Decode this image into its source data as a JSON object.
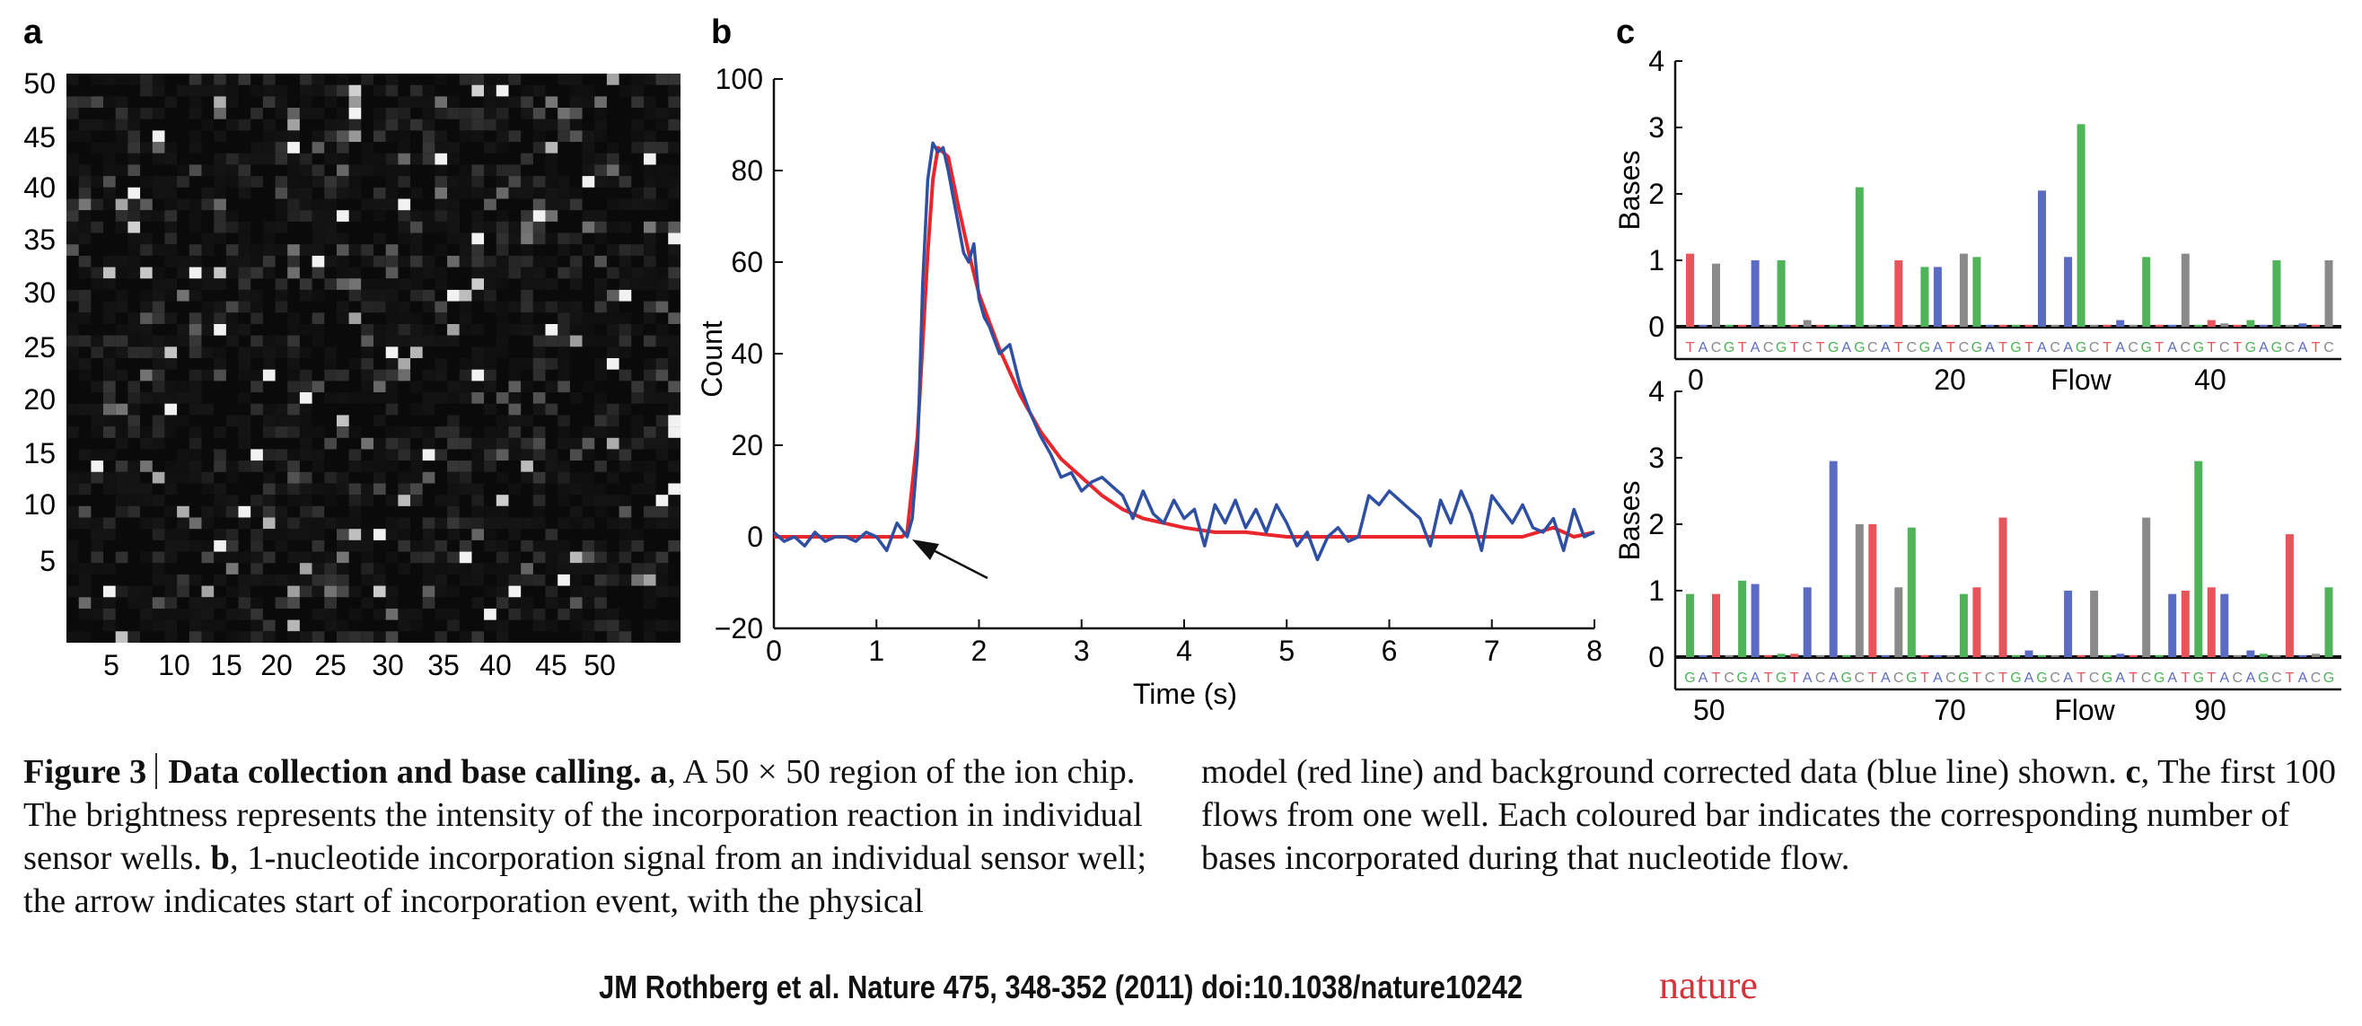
{
  "panels": {
    "a": {
      "label": "a",
      "y_ticks": [
        "50",
        "45",
        "40",
        "35",
        "30",
        "25",
        "20",
        "15",
        "10",
        "5"
      ],
      "x_ticks": [
        "5",
        "10",
        "15",
        "20",
        "25",
        "30",
        "35",
        "40",
        "45",
        "50"
      ]
    },
    "b": {
      "label": "b"
    },
    "c": {
      "label": "c"
    }
  },
  "chart_data": [
    {
      "panel": "a",
      "type": "heatmap",
      "description_grid": "50x50 sensor-well intensities",
      "grid_size": [
        50,
        50
      ],
      "background": "#0a0a0a",
      "bright_wells": [
        [
          34,
          47
        ],
        [
          36,
          45
        ],
        [
          32,
          42
        ],
        [
          12,
          41
        ],
        [
          48,
          37
        ],
        [
          55,
          36
        ],
        [
          15,
          33
        ],
        [
          50,
          31
        ],
        [
          19,
          28
        ],
        [
          33,
          26
        ],
        [
          26,
          24
        ],
        [
          12,
          22
        ],
        [
          39,
          22
        ],
        [
          45,
          19
        ],
        [
          10,
          17
        ],
        [
          20,
          16
        ],
        [
          33,
          14
        ],
        [
          38,
          12
        ],
        [
          22,
          12
        ],
        [
          27,
          11
        ],
        [
          5,
          10
        ],
        [
          42,
          9
        ],
        [
          47,
          7
        ],
        [
          30,
          7
        ],
        [
          18,
          6
        ],
        [
          23,
          3
        ],
        [
          35,
          1
        ],
        [
          8,
          29
        ],
        [
          29,
          33
        ],
        [
          44,
          25
        ],
        [
          14,
          38
        ],
        [
          25,
          40
        ],
        [
          40,
          44
        ],
        [
          3,
          45
        ],
        [
          52,
          30
        ],
        [
          7,
          5
        ],
        [
          16,
          26
        ],
        [
          31,
          19
        ],
        [
          49,
          14
        ],
        [
          2,
          34
        ]
      ]
    },
    {
      "panel": "b",
      "type": "line",
      "xlabel": "Time (s)",
      "ylabel": "Count",
      "xlim": [
        0,
        8
      ],
      "ylim": [
        -20,
        100
      ],
      "x_ticks": [
        "0",
        "1",
        "2",
        "3",
        "4",
        "5",
        "6",
        "7",
        "8"
      ],
      "y_ticks": [
        "100",
        "80",
        "60",
        "40",
        "20",
        "0",
        "−20"
      ],
      "colors": {
        "model": "#e8262b",
        "data": "#2f4fa3",
        "arrow": "#111111"
      },
      "series": [
        {
          "key": "model",
          "x": [
            0,
            0.25,
            0.5,
            0.75,
            1.0,
            1.25,
            1.3,
            1.4,
            1.5,
            1.55,
            1.6,
            1.7,
            1.8,
            1.9,
            2.0,
            2.2,
            2.4,
            2.6,
            2.8,
            3.0,
            3.2,
            3.4,
            3.6,
            3.8,
            4.0,
            4.3,
            4.6,
            5.0,
            5.5,
            6.0,
            6.5,
            7.0,
            7.3,
            7.6,
            7.8,
            8.0
          ],
          "y": [
            0,
            0,
            0,
            0,
            0,
            0,
            1,
            22,
            62,
            78,
            85,
            83,
            72,
            62,
            53,
            41,
            31,
            23,
            17,
            13,
            9,
            6,
            4,
            3,
            2,
            1,
            1,
            0,
            0,
            0,
            0,
            0,
            0,
            2,
            0,
            1
          ]
        },
        {
          "key": "data",
          "x": [
            0,
            0.1,
            0.2,
            0.3,
            0.4,
            0.5,
            0.6,
            0.7,
            0.8,
            0.9,
            1.0,
            1.1,
            1.2,
            1.3,
            1.35,
            1.4,
            1.45,
            1.5,
            1.55,
            1.6,
            1.65,
            1.7,
            1.75,
            1.8,
            1.85,
            1.9,
            1.95,
            2.0,
            2.05,
            2.1,
            2.2,
            2.3,
            2.4,
            2.5,
            2.6,
            2.7,
            2.8,
            2.9,
            3.0,
            3.1,
            3.2,
            3.3,
            3.4,
            3.5,
            3.6,
            3.7,
            3.8,
            3.9,
            4.0,
            4.1,
            4.2,
            4.3,
            4.4,
            4.5,
            4.6,
            4.7,
            4.8,
            4.9,
            5.0,
            5.1,
            5.2,
            5.3,
            5.4,
            5.5,
            5.6,
            5.7,
            5.8,
            5.9,
            6.0,
            6.1,
            6.2,
            6.3,
            6.4,
            6.5,
            6.6,
            6.7,
            6.8,
            6.9,
            7.0,
            7.1,
            7.2,
            7.3,
            7.4,
            7.5,
            7.6,
            7.7,
            7.8,
            7.9,
            8.0
          ],
          "y": [
            1,
            -1,
            0,
            -2,
            1,
            -1,
            0,
            0,
            -1,
            1,
            0,
            -3,
            3,
            0,
            4,
            18,
            55,
            78,
            86,
            84,
            85,
            80,
            74,
            68,
            62,
            60,
            64,
            52,
            48,
            46,
            40,
            42,
            33,
            27,
            22,
            18,
            13,
            14,
            10,
            12,
            13,
            11,
            9,
            4,
            10,
            5,
            3,
            8,
            4,
            6,
            -2,
            7,
            3,
            8,
            2,
            6,
            1,
            7,
            3,
            -2,
            1,
            -5,
            0,
            2,
            -1,
            0,
            9,
            7,
            10,
            8,
            6,
            4,
            -2,
            8,
            3,
            10,
            5,
            -3,
            9,
            6,
            3,
            7,
            2,
            1,
            4,
            -3,
            6,
            0,
            1
          ]
        }
      ]
    },
    {
      "panel": "c",
      "type": "bar",
      "ylabel": "Bases",
      "xlabel": "Flow",
      "ylim": [
        0,
        4
      ],
      "y_ticks": [
        "4",
        "3",
        "2",
        "1",
        "0"
      ],
      "colors": {
        "T": "#e8545a",
        "A": "#5a6bc4",
        "C": "#8a8a8a",
        "G": "#4fb35a"
      },
      "rows": [
        {
          "x_ticks": [
            "0",
            "20",
            "Flow",
            "40"
          ],
          "flow_start": 0,
          "sequence": "TACGTACGTCTGAGCATCGATCGATGTACAGCTACGTACGTCTGAGCATC",
          "values": [
            1.1,
            0.0,
            0.95,
            0.0,
            0.02,
            1.0,
            0.0,
            1.0,
            0.0,
            0.1,
            0.0,
            0.0,
            0.0,
            2.1,
            0.0,
            0.0,
            1.0,
            0.0,
            0.9,
            0.9,
            0.0,
            1.1,
            1.05,
            0.0,
            0.02,
            0.0,
            0.0,
            2.05,
            0.0,
            1.05,
            3.05,
            0.0,
            0.02,
            0.1,
            0.0,
            1.05,
            0.0,
            0.0,
            1.1,
            0.0,
            0.1,
            0.05,
            0.0,
            0.1,
            0.0,
            1.0,
            0.0,
            0.05,
            0.02,
            1.0
          ]
        },
        {
          "x_ticks": [
            "50",
            "70",
            "Flow",
            "90"
          ],
          "flow_start": 50,
          "sequence": "GATCGATGTACAGCTACGTACGTCTGAGCATCGATCGATGTACAGCTACG",
          "values": [
            0.95,
            0.0,
            0.95,
            0.0,
            1.15,
            1.1,
            0.02,
            0.05,
            0.05,
            1.05,
            0.0,
            2.95,
            0.0,
            2.0,
            2.0,
            0.0,
            1.05,
            1.95,
            0.0,
            0.0,
            0.0,
            0.95,
            1.05,
            0.0,
            2.1,
            0.0,
            0.1,
            0.0,
            0.0,
            1.0,
            0.0,
            1.0,
            0.0,
            0.05,
            0.02,
            2.1,
            0.0,
            0.95,
            1.0,
            2.95,
            1.05,
            0.95,
            0.0,
            0.1,
            0.05,
            0.0,
            1.85,
            0.0,
            0.05,
            1.05
          ]
        }
      ]
    }
  ],
  "caption": {
    "fig_label": "Figure 3",
    "title": "Data collection and base calling.",
    "a_label": "a",
    "a_text": ", A 50 × 50 region of the ion chip. The brightness represents the intensity of the incorporation reaction in individual sensor wells.",
    "b_label": "b",
    "b_text_left": ", 1-nucleotide incorporation signal from an individual sensor well; the arrow indicates start of incorporation event, with the physical",
    "b_text_right": "model (red line) and background corrected data (blue line) shown.",
    "c_label": "c",
    "c_text": ", The first 100 flows from one well. Each coloured bar indicates the corresponding number of bases incorporated during that nucleotide flow."
  },
  "citation": "JM Rothberg et al. Nature 475, 348-352 (2011) doi:10.1038/nature10242",
  "journal_logo": "nature"
}
